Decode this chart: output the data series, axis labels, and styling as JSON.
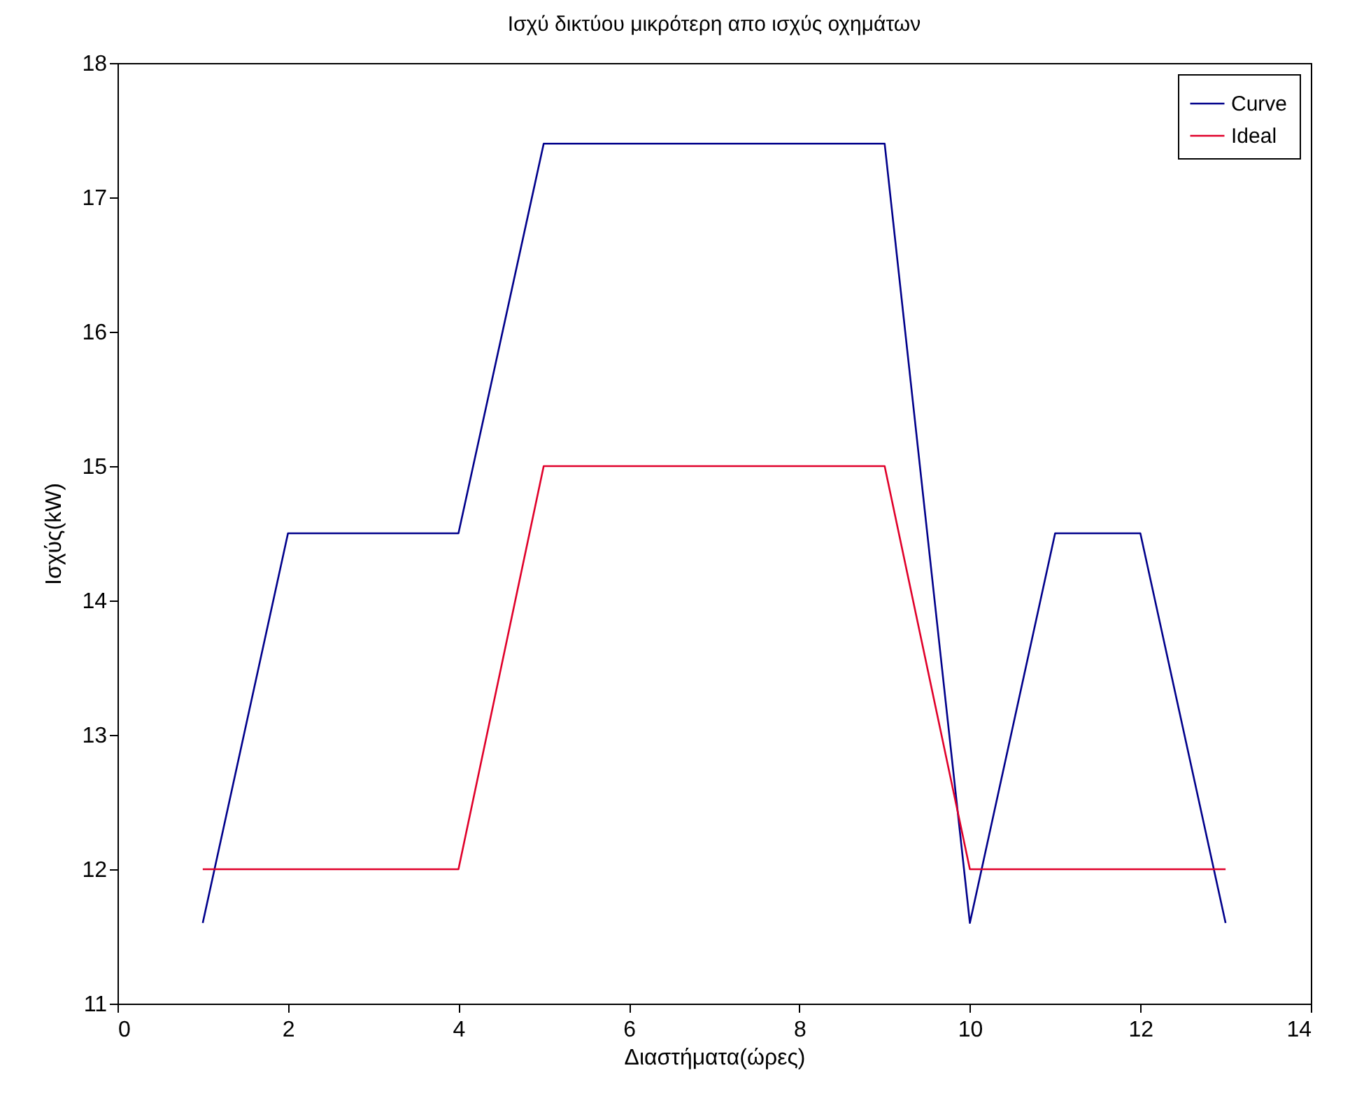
{
  "chart_data": {
    "type": "line",
    "title": "Ισχύ δικτύου μικρότερη απο ισχύς οχημάτων",
    "xlabel": "Διαστήματα(ώρες)",
    "ylabel": "Ισχύς(kW)",
    "x": [
      1,
      2,
      3,
      4,
      5,
      6,
      7,
      8,
      9,
      10,
      11,
      12,
      13
    ],
    "series": [
      {
        "name": "Curve",
        "color": "#00008b",
        "values": [
          11.6,
          14.5,
          14.5,
          14.5,
          17.4,
          17.4,
          17.4,
          17.4,
          17.4,
          11.6,
          14.5,
          14.5,
          11.6
        ]
      },
      {
        "name": "Ideal",
        "color": "#e0002a",
        "values": [
          12,
          12,
          12,
          12,
          15,
          15,
          15,
          15,
          15,
          12,
          12,
          12,
          12
        ]
      }
    ],
    "xlim": [
      0,
      14
    ],
    "xticks": [
      0,
      2,
      4,
      6,
      8,
      10,
      12,
      14
    ],
    "ylim": [
      11,
      18
    ],
    "yticks": [
      11,
      12,
      13,
      14,
      15,
      16,
      17,
      18
    ],
    "legend": "top right"
  }
}
